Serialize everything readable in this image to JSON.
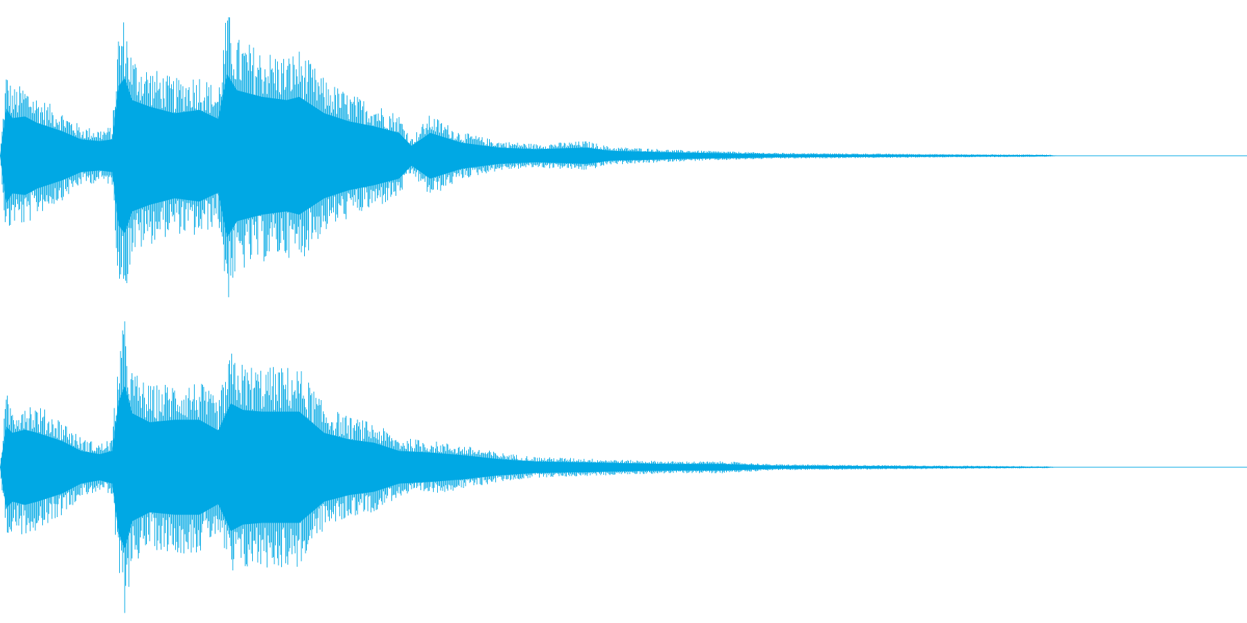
{
  "waveform": {
    "color": "#00A8E4",
    "background": "#FFFFFF",
    "channels": [
      {
        "name": "left",
        "envelope": [
          [
            0.0,
            0.0
          ],
          [
            0.005,
            0.58
          ],
          [
            0.01,
            0.46
          ],
          [
            0.02,
            0.48
          ],
          [
            0.03,
            0.4
          ],
          [
            0.05,
            0.3
          ],
          [
            0.065,
            0.2
          ],
          [
            0.08,
            0.18
          ],
          [
            0.09,
            0.2
          ],
          [
            0.095,
            0.85
          ],
          [
            0.1,
            0.95
          ],
          [
            0.106,
            0.68
          ],
          [
            0.12,
            0.6
          ],
          [
            0.14,
            0.52
          ],
          [
            0.16,
            0.56
          ],
          [
            0.175,
            0.45
          ],
          [
            0.182,
            1.0
          ],
          [
            0.19,
            0.8
          ],
          [
            0.21,
            0.72
          ],
          [
            0.23,
            0.68
          ],
          [
            0.24,
            0.72
          ],
          [
            0.26,
            0.52
          ],
          [
            0.28,
            0.42
          ],
          [
            0.3,
            0.36
          ],
          [
            0.32,
            0.28
          ],
          [
            0.33,
            0.12
          ],
          [
            0.345,
            0.28
          ],
          [
            0.37,
            0.16
          ],
          [
            0.4,
            0.1
          ],
          [
            0.43,
            0.08
          ],
          [
            0.47,
            0.1
          ],
          [
            0.49,
            0.06
          ],
          [
            0.52,
            0.05
          ],
          [
            0.54,
            0.04
          ],
          [
            0.58,
            0.03
          ],
          [
            0.62,
            0.02
          ],
          [
            0.7,
            0.015
          ],
          [
            0.78,
            0.01
          ],
          [
            0.84,
            0.008
          ],
          [
            0.85,
            0.0
          ],
          [
            1.0,
            0.0
          ]
        ]
      },
      {
        "name": "right",
        "envelope": [
          [
            0.0,
            0.0
          ],
          [
            0.005,
            0.5
          ],
          [
            0.01,
            0.42
          ],
          [
            0.02,
            0.46
          ],
          [
            0.03,
            0.42
          ],
          [
            0.05,
            0.32
          ],
          [
            0.065,
            0.2
          ],
          [
            0.08,
            0.16
          ],
          [
            0.09,
            0.2
          ],
          [
            0.095,
            0.8
          ],
          [
            0.1,
            1.0
          ],
          [
            0.106,
            0.66
          ],
          [
            0.12,
            0.55
          ],
          [
            0.14,
            0.58
          ],
          [
            0.16,
            0.58
          ],
          [
            0.175,
            0.45
          ],
          [
            0.185,
            0.78
          ],
          [
            0.195,
            0.7
          ],
          [
            0.21,
            0.68
          ],
          [
            0.24,
            0.68
          ],
          [
            0.26,
            0.42
          ],
          [
            0.28,
            0.34
          ],
          [
            0.3,
            0.3
          ],
          [
            0.32,
            0.2
          ],
          [
            0.345,
            0.18
          ],
          [
            0.37,
            0.15
          ],
          [
            0.4,
            0.1
          ],
          [
            0.43,
            0.07
          ],
          [
            0.47,
            0.06
          ],
          [
            0.5,
            0.05
          ],
          [
            0.54,
            0.04
          ],
          [
            0.58,
            0.04
          ],
          [
            0.62,
            0.02
          ],
          [
            0.7,
            0.015
          ],
          [
            0.78,
            0.01
          ],
          [
            0.84,
            0.006
          ],
          [
            0.85,
            0.0
          ],
          [
            1.0,
            0.0
          ]
        ]
      }
    ]
  }
}
